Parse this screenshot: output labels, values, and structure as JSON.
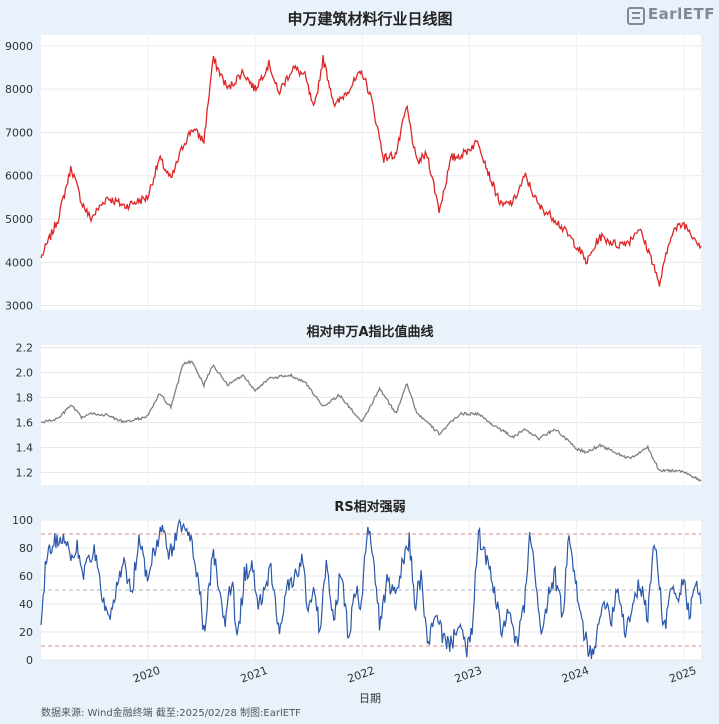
{
  "brand": {
    "logo_text": "EarlETF",
    "accent": "#7f8a96"
  },
  "footer": {
    "source": "数据来源: Wind金融终端 截至:2025/02/28 制图:EarlETF",
    "xlabel": "日期"
  },
  "colors": {
    "price": "#dd2626",
    "ratio": "#808080",
    "rs": "#2b58a8",
    "guide": "#e38b8b",
    "midguide": "#a9b4c9"
  },
  "chart_data": [
    {
      "type": "line",
      "title": "申万建筑材料行业日线图",
      "ylim": [
        2900,
        9250
      ],
      "yticks": [
        3000,
        4000,
        5000,
        6000,
        7000,
        8000,
        9000
      ],
      "x_range": [
        "2019-01-02",
        "2025-02-28"
      ],
      "series": [
        {
          "name": "",
          "x": [
            "2019-01-02",
            "2019-03-01",
            "2019-04-15",
            "2019-05-20",
            "2019-06-20",
            "2019-08-15",
            "2019-10-15",
            "2019-12-31",
            "2020-02-10",
            "2020-03-20",
            "2020-04-30",
            "2020-06-01",
            "2020-07-10",
            "2020-08-10",
            "2020-09-30",
            "2020-11-20",
            "2020-12-31",
            "2021-02-18",
            "2021-03-20",
            "2021-05-10",
            "2021-06-20",
            "2021-07-20",
            "2021-08-20",
            "2021-09-30",
            "2021-11-15",
            "2021-12-31",
            "2022-01-31",
            "2022-03-15",
            "2022-04-26",
            "2022-06-01",
            "2022-07-05",
            "2022-08-10",
            "2022-09-20",
            "2022-10-31",
            "2022-12-10",
            "2023-01-31",
            "2023-03-10",
            "2023-04-20",
            "2023-05-31",
            "2023-07-10",
            "2023-08-25",
            "2023-10-20",
            "2023-12-31",
            "2024-02-05",
            "2024-03-20",
            "2024-05-20",
            "2024-06-30",
            "2024-07-31",
            "2024-09-18",
            "2024-10-08",
            "2024-11-20",
            "2024-12-31",
            "2025-02-28"
          ],
          "values": [
            4100,
            5000,
            6200,
            5400,
            5000,
            5500,
            5300,
            5500,
            6400,
            5900,
            6700,
            7100,
            6800,
            8700,
            8000,
            8400,
            8000,
            8600,
            7900,
            8500,
            8300,
            7500,
            8700,
            7600,
            8000,
            8400,
            7800,
            6400,
            6500,
            7600,
            6300,
            6500,
            5200,
            6400,
            6500,
            6800,
            6000,
            5300,
            5400,
            6000,
            5300,
            5000,
            4400,
            4000,
            4600,
            4400,
            4500,
            4800,
            4000,
            3450,
            4700,
            4900,
            4380
          ]
        }
      ]
    },
    {
      "type": "line",
      "title": "相对申万A指比值曲线",
      "ylim": [
        1.1,
        2.22
      ],
      "yticks": [
        1.2,
        1.4,
        1.6,
        1.8,
        2.0,
        2.2
      ],
      "x_range": [
        "2019-01-02",
        "2025-02-28"
      ],
      "series": [
        {
          "name": "",
          "x": [
            "2019-01-02",
            "2019-03-01",
            "2019-04-15",
            "2019-05-20",
            "2019-06-20",
            "2019-08-15",
            "2019-10-15",
            "2019-12-31",
            "2020-02-10",
            "2020-03-20",
            "2020-05-01",
            "2020-06-01",
            "2020-07-10",
            "2020-08-10",
            "2020-09-30",
            "2020-11-20",
            "2020-12-31",
            "2021-02-18",
            "2021-05-01",
            "2021-06-20",
            "2021-08-20",
            "2021-10-15",
            "2021-12-31",
            "2022-03-01",
            "2022-04-26",
            "2022-06-01",
            "2022-07-05",
            "2022-09-20",
            "2022-11-30",
            "2023-01-31",
            "2023-03-10",
            "2023-05-31",
            "2023-07-10",
            "2023-08-25",
            "2023-10-20",
            "2023-12-31",
            "2024-02-05",
            "2024-03-20",
            "2024-05-20",
            "2024-06-30",
            "2024-08-31",
            "2024-10-08",
            "2024-12-31",
            "2025-02-28"
          ],
          "values": [
            1.6,
            1.63,
            1.74,
            1.64,
            1.67,
            1.66,
            1.6,
            1.65,
            1.83,
            1.72,
            2.07,
            2.09,
            1.9,
            2.06,
            1.9,
            1.98,
            1.86,
            1.95,
            1.98,
            1.92,
            1.73,
            1.82,
            1.6,
            1.87,
            1.67,
            1.92,
            1.68,
            1.51,
            1.67,
            1.67,
            1.6,
            1.48,
            1.55,
            1.47,
            1.55,
            1.39,
            1.36,
            1.42,
            1.35,
            1.31,
            1.4,
            1.22,
            1.21,
            1.13
          ]
        }
      ]
    },
    {
      "type": "line",
      "title": "RS相对强弱",
      "ylim": [
        0,
        100
      ],
      "yticks": [
        0,
        20,
        40,
        60,
        80,
        100
      ],
      "guides": [
        10,
        50,
        90
      ],
      "x_range": [
        "2019-01-02",
        "2025-02-28"
      ],
      "xticks": [
        "2020",
        "2021",
        "2022",
        "2023",
        "2024",
        "2025"
      ],
      "xtick_dates": [
        "2020-01-01",
        "2021-01-01",
        "2022-01-01",
        "2023-01-01",
        "2024-01-01",
        "2025-01-01"
      ],
      "series": [
        {
          "name": "",
          "x": [
            "2019-01-02",
            "2019-01-20",
            "2019-02-20",
            "2019-03-25",
            "2019-04-15",
            "2019-05-05",
            "2019-05-25",
            "2019-06-30",
            "2019-07-30",
            "2019-08-25",
            "2019-09-20",
            "2019-10-15",
            "2019-11-05",
            "2019-12-01",
            "2019-12-31",
            "2020-01-25",
            "2020-02-20",
            "2020-03-15",
            "2020-04-10",
            "2020-05-05",
            "2020-05-25",
            "2020-06-20",
            "2020-07-10",
            "2020-07-25",
            "2020-08-10",
            "2020-08-25",
            "2020-09-20",
            "2020-10-15",
            "2020-10-30",
            "2020-11-25",
            "2020-12-20",
            "2021-01-10",
            "2021-02-05",
            "2021-02-25",
            "2021-03-20",
            "2021-04-25",
            "2021-05-20",
            "2021-06-10",
            "2021-06-30",
            "2021-07-20",
            "2021-08-10",
            "2021-08-30",
            "2021-09-25",
            "2021-10-20",
            "2021-11-15",
            "2021-12-05",
            "2021-12-31",
            "2022-01-15",
            "2022-02-05",
            "2022-03-01",
            "2022-03-25",
            "2022-04-26",
            "2022-05-20",
            "2022-06-10",
            "2022-06-30",
            "2022-07-20",
            "2022-08-10",
            "2022-09-10",
            "2022-10-01",
            "2022-10-31",
            "2022-11-25",
            "2022-12-20",
            "2023-01-10",
            "2023-01-31",
            "2023-02-25",
            "2023-03-25",
            "2023-04-20",
            "2023-05-15",
            "2023-06-10",
            "2023-07-05",
            "2023-07-25",
            "2023-08-15",
            "2023-09-05",
            "2023-09-25",
            "2023-10-20",
            "2023-11-15",
            "2023-12-05",
            "2023-12-31",
            "2024-01-25",
            "2024-02-15",
            "2024-03-10",
            "2024-04-05",
            "2024-04-30",
            "2024-05-20",
            "2024-06-15",
            "2024-07-10",
            "2024-08-05",
            "2024-08-31",
            "2024-09-20",
            "2024-10-08",
            "2024-10-25",
            "2024-11-20",
            "2024-12-10",
            "2024-12-31",
            "2025-01-20",
            "2025-02-10",
            "2025-02-28"
          ],
          "values": [
            25,
            75,
            85,
            90,
            70,
            82,
            60,
            80,
            45,
            25,
            55,
            70,
            45,
            85,
            60,
            80,
            96,
            75,
            92,
            98,
            85,
            60,
            20,
            45,
            75,
            60,
            25,
            60,
            10,
            60,
            70,
            35,
            55,
            65,
            20,
            55,
            60,
            72,
            35,
            50,
            20,
            70,
            25,
            65,
            15,
            50,
            40,
            92,
            80,
            25,
            55,
            45,
            70,
            85,
            40,
            60,
            12,
            30,
            18,
            10,
            30,
            5,
            20,
            90,
            75,
            50,
            20,
            35,
            10,
            35,
            85,
            60,
            15,
            45,
            60,
            30,
            88,
            50,
            20,
            5,
            15,
            45,
            30,
            55,
            20,
            40,
            55,
            30,
            85,
            60,
            20,
            55,
            40,
            60,
            30,
            55,
            40
          ]
        }
      ]
    }
  ]
}
